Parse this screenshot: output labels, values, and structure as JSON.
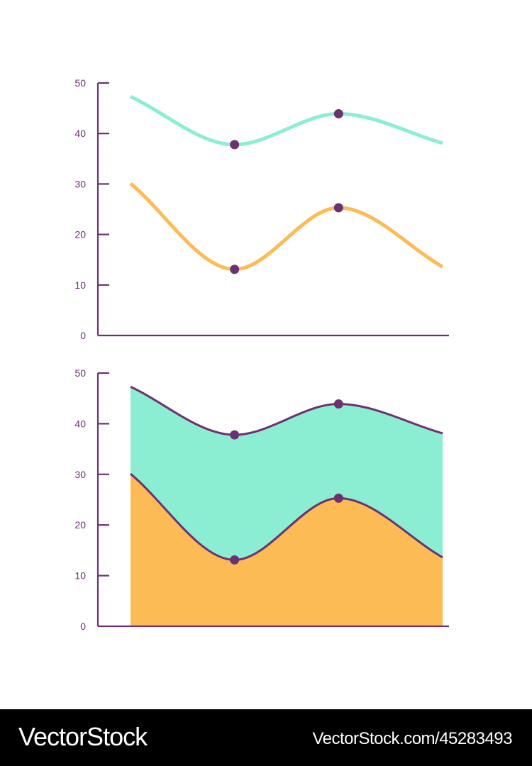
{
  "colors": {
    "axis": "#6b3272",
    "teal": "#8beed2",
    "orange": "#fdbb55",
    "marker": "#6b3272",
    "background": "#ffffff"
  },
  "chart_data": [
    {
      "type": "line",
      "x": [
        1,
        2,
        3,
        4
      ],
      "series": [
        {
          "values": [
            47.3,
            37.8,
            43.9,
            38.1
          ],
          "color": "#8beed2",
          "markers_at": [
            2,
            3
          ]
        },
        {
          "values": [
            30.1,
            13.1,
            25.3,
            13.6
          ],
          "color": "#fdbb55",
          "markers_at": [
            2,
            3
          ]
        }
      ],
      "ylim": [
        0,
        50
      ],
      "yticks": [
        "0",
        "10",
        "20",
        "30",
        "40",
        "50"
      ],
      "xlabel": "",
      "ylabel": "",
      "title": "",
      "grid": false
    },
    {
      "type": "area",
      "x": [
        1,
        2,
        3,
        4
      ],
      "series": [
        {
          "values": [
            47.3,
            37.8,
            43.9,
            38.1
          ],
          "color": "#8beed2",
          "markers_at": [
            2,
            3
          ]
        },
        {
          "values": [
            30.1,
            13.1,
            25.3,
            13.6
          ],
          "color": "#fdbb55",
          "markers_at": [
            2,
            3
          ]
        }
      ],
      "ylim": [
        0,
        50
      ],
      "yticks": [
        "0",
        "10",
        "20",
        "30",
        "40",
        "50"
      ],
      "xlabel": "",
      "ylabel": "",
      "title": "",
      "grid": false
    }
  ],
  "footer": {
    "brand": "VectorStock",
    "url": "VectorStock.com/45283493"
  }
}
